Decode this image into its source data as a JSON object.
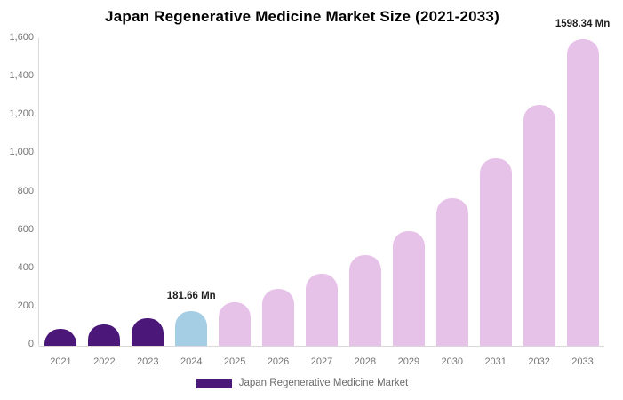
{
  "chart_data": {
    "type": "bar",
    "title": "Japan Regenerative Medicine Market Size (2021-2033)",
    "categories": [
      "2021",
      "2022",
      "2023",
      "2024",
      "2025",
      "2026",
      "2027",
      "2028",
      "2029",
      "2030",
      "2031",
      "2032",
      "2033"
    ],
    "values": [
      86,
      111,
      142,
      181.66,
      228,
      295,
      375,
      475,
      600,
      770,
      980,
      1255,
      1598.34
    ],
    "value_unit": "Mn",
    "xlabel": "",
    "ylabel": "",
    "ylim": [
      0,
      1600
    ],
    "ytick_step": 200,
    "ytick_labels": [
      "0",
      "200",
      "400",
      "600",
      "800",
      "1,000",
      "1,200",
      "1,400",
      "1,600"
    ],
    "grid": false,
    "legend_position": "bottom",
    "legend_label": "Japan Regenerative Medicine Market",
    "annotations": [
      {
        "category": "2024",
        "index": 3,
        "text": "181.66 Mn"
      },
      {
        "category": "2033",
        "index": 12,
        "text": "1598.34 Mn"
      }
    ],
    "bar_colors": [
      "#4b187a",
      "#4b187a",
      "#4b187a",
      "#a5cde3",
      "#e6c1e8",
      "#e6c1e8",
      "#e6c1e8",
      "#e6c1e8",
      "#e6c1e8",
      "#e6c1e8",
      "#e6c1e8",
      "#e6c1e8",
      "#e6c1e8"
    ],
    "colors": {
      "historical_purple": "#4b187a",
      "highlight_blue": "#a5cde3",
      "forecast_pink": "#e6c1e8",
      "legend_swatch": "#4b187a",
      "axis_line": "#d9d9d9",
      "tick_text": "#757575",
      "annotation_text": "#1f1f1f",
      "title_text": "#000000"
    }
  }
}
